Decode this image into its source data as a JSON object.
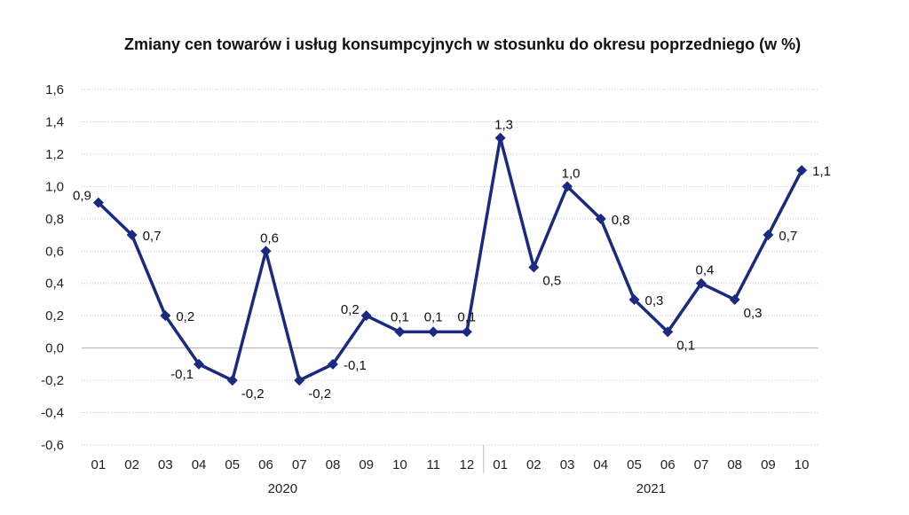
{
  "chart_data": {
    "type": "line",
    "title": "Zmiany cen towarów i usług konsumpcyjnych w stosunku do okresu poprzedniego (w %)",
    "categories": [
      "01",
      "02",
      "03",
      "04",
      "05",
      "06",
      "07",
      "08",
      "09",
      "10",
      "11",
      "12",
      "01",
      "02",
      "03",
      "04",
      "05",
      "06",
      "07",
      "08",
      "09",
      "10"
    ],
    "groups": [
      {
        "label": "2020",
        "start": 0,
        "end": 11
      },
      {
        "label": "2021",
        "start": 12,
        "end": 21
      }
    ],
    "series": [
      {
        "values": [
          0.9,
          0.7,
          0.2,
          -0.1,
          -0.2,
          0.6,
          -0.2,
          -0.1,
          0.2,
          0.1,
          0.1,
          0.1,
          1.3,
          0.5,
          1.0,
          0.8,
          0.3,
          0.1,
          0.4,
          0.3,
          0.7,
          1.1
        ],
        "labels": [
          "0,9",
          "0,7",
          "0,2",
          "-0,1",
          "-0,2",
          "0,6",
          "-0,2",
          "-0,1",
          "0,2",
          "0,1",
          "0,1",
          "0,1",
          "1,3",
          "0,5",
          "1,0",
          "0,8",
          "0,3",
          "0,1",
          "0,4",
          "0,3",
          "0,7",
          "1,1"
        ],
        "color": "#1a2a80"
      }
    ],
    "ylim": [
      -0.6,
      1.6
    ],
    "yticks": [
      -0.6,
      -0.4,
      -0.2,
      0.0,
      0.2,
      0.4,
      0.6,
      0.8,
      1.0,
      1.2,
      1.4,
      1.6
    ],
    "ytick_labels": [
      "-0,6",
      "-0,4",
      "-0,2",
      "0,0",
      "0,2",
      "0,4",
      "0,6",
      "0,8",
      "1,0",
      "1,2",
      "1,4",
      "1,6"
    ],
    "grid": true,
    "legend": "none"
  }
}
